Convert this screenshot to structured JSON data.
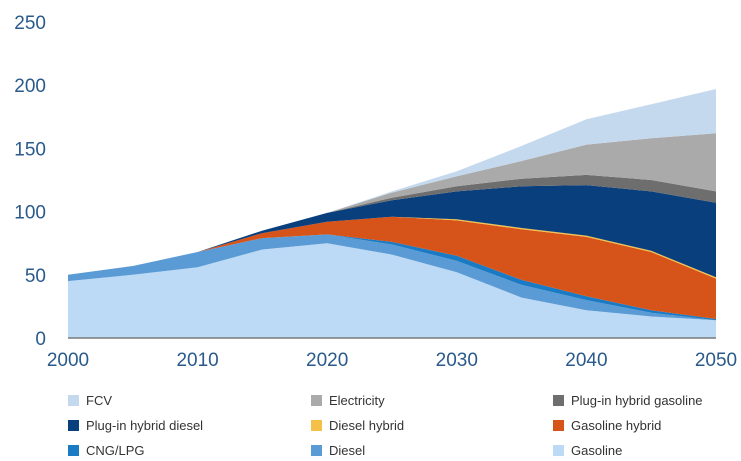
{
  "chart_data": {
    "type": "area",
    "stacked": true,
    "x": [
      2000,
      2005,
      2010,
      2015,
      2020,
      2025,
      2030,
      2035,
      2040,
      2045,
      2050
    ],
    "series": [
      {
        "name": "Gasoline",
        "color": "#bcdaf5",
        "values": [
          45,
          50,
          56,
          70,
          75,
          66,
          52,
          32,
          22,
          17,
          14
        ]
      },
      {
        "name": "Diesel",
        "color": "#5b9bd5",
        "values": [
          5,
          7,
          12,
          9,
          7,
          8,
          9,
          10,
          8,
          3,
          0
        ]
      },
      {
        "name": "CNG/LPG",
        "color": "#1a7ac4",
        "values": [
          0,
          0,
          0,
          0,
          0,
          2,
          4,
          4,
          3,
          2,
          1
        ]
      },
      {
        "name": "Gasoline hybrid",
        "color": "#d6531a",
        "values": [
          0,
          0,
          0,
          4,
          10,
          20,
          28,
          40,
          47,
          46,
          32
        ]
      },
      {
        "name": "Diesel hybrid",
        "color": "#f5c048",
        "values": [
          0,
          0,
          0,
          0,
          0,
          0,
          1,
          1,
          1,
          1,
          1
        ]
      },
      {
        "name": "Plug-in hybrid diesel",
        "color": "#0a3f7d",
        "values": [
          0,
          0,
          0,
          2,
          7,
          13,
          22,
          33,
          40,
          47,
          59
        ]
      },
      {
        "name": "Plug-in hybrid gasoline",
        "color": "#6e6e6e",
        "values": [
          0,
          0,
          0,
          0,
          0,
          2,
          4,
          6,
          8,
          9,
          9
        ]
      },
      {
        "name": "Electricity",
        "color": "#aaaaaa",
        "values": [
          0,
          0,
          0,
          0,
          0,
          4,
          8,
          14,
          24,
          33,
          46
        ]
      },
      {
        "name": "FCV",
        "color": "#c5d9ee",
        "values": [
          0,
          0,
          0,
          0,
          0,
          1,
          4,
          12,
          20,
          27,
          35
        ]
      }
    ],
    "xticks": [
      "2000",
      "2010",
      "2020",
      "2030",
      "2040",
      "2050"
    ],
    "yticks": [
      "0",
      "50",
      "100",
      "150",
      "200",
      "250"
    ],
    "xlim": [
      2000,
      2050
    ],
    "ylim": [
      0,
      250
    ],
    "legend_position": "bottom",
    "legend_rows": [
      [
        "FCV",
        "Electricity",
        "Plug-in hybrid gasoline"
      ],
      [
        "Plug-in hybrid diesel",
        "Diesel hybrid",
        "Gasoline hybrid"
      ],
      [
        "CNG/LPG",
        "Diesel",
        "Gasoline"
      ]
    ],
    "grid": false
  }
}
